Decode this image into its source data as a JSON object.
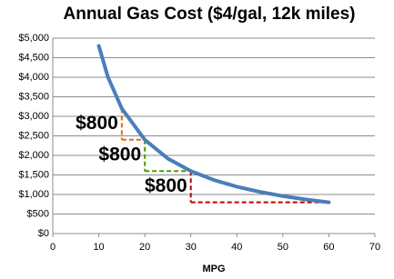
{
  "chart_data": {
    "type": "line",
    "title": "Annual Gas Cost ($4/gal, 12k miles)",
    "x_label": "MPG",
    "x": [
      10,
      12,
      15,
      20,
      25,
      30,
      35,
      40,
      45,
      50,
      55,
      60
    ],
    "series": [
      {
        "name": "Annual Gas Cost",
        "color": "#4a7ebb",
        "values": [
          4800,
          4000,
          3200,
          2400,
          1920,
          1600,
          1371,
          1200,
          1067,
          960,
          873,
          800
        ]
      }
    ],
    "xlim": [
      0,
      70
    ],
    "xticks": [
      0,
      10,
      20,
      30,
      40,
      50,
      60,
      70
    ],
    "ylim": [
      0,
      5000
    ],
    "yticks": [
      {
        "value": 0,
        "label": "$0"
      },
      {
        "value": 500,
        "label": "$500"
      },
      {
        "value": 1000,
        "label": "$1,000"
      },
      {
        "value": 1500,
        "label": "$1,500"
      },
      {
        "value": 2000,
        "label": "$2,000"
      },
      {
        "value": 2500,
        "label": "$2,500"
      },
      {
        "value": 3000,
        "label": "$3,000"
      },
      {
        "value": 3500,
        "label": "$3,500"
      },
      {
        "value": 4000,
        "label": "$4,000"
      },
      {
        "value": 4500,
        "label": "$4,500"
      },
      {
        "value": 5000,
        "label": "$5,000"
      }
    ],
    "grid": true,
    "annotations": [
      {
        "text": "$800",
        "color": "#e46c0a",
        "x": 15,
        "x2": 20,
        "y1": 3200,
        "y2": 2400
      },
      {
        "text": "$800",
        "color": "#4e9a06",
        "x": 20,
        "x2": 30,
        "y1": 2400,
        "y2": 1600
      },
      {
        "text": "$800",
        "color": "#c00000",
        "x": 30,
        "x2": 60,
        "y1": 1600,
        "y2": 800
      }
    ]
  }
}
